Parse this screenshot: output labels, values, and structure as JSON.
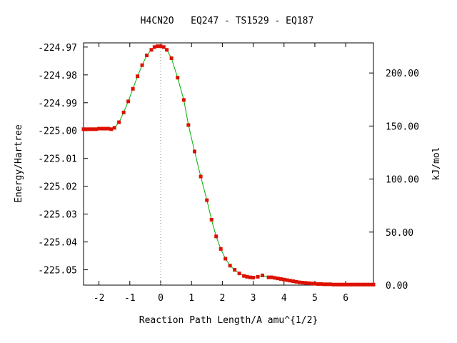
{
  "chart_data": {
    "type": "line",
    "title": "H4CN2O   EQ247 - TS1529 - EQ187",
    "xlabel": "Reaction Path Length/A amu^{1/2}",
    "ylabel": "Energy/Hartree",
    "y2label": "kJ/mol",
    "xlim": [
      -2.5,
      6.9
    ],
    "ylim": [
      -225.0555,
      -224.9685
    ],
    "y2lim": [
      0,
      228.4
    ],
    "x_ticks": [
      -2,
      -1,
      0,
      1,
      2,
      3,
      4,
      5,
      6
    ],
    "x_tick_labels": [
      "-2",
      "-1",
      "0",
      "1",
      "2",
      "3",
      "4",
      "5",
      "6"
    ],
    "y_ticks": [
      -224.97,
      -224.98,
      -224.99,
      -225.0,
      -225.01,
      -225.02,
      -225.03,
      -225.04,
      -225.05
    ],
    "y_tick_labels": [
      "-224.97",
      "-224.98",
      "-224.99",
      "-225.00",
      "-225.01",
      "-225.02",
      "-225.03",
      "-225.04",
      "-225.05"
    ],
    "y2_ticks": [
      0,
      50,
      100,
      150,
      200
    ],
    "y2_tick_labels": [
      "0.00",
      "50.00",
      "100.00",
      "150.00",
      "200.00"
    ],
    "ts_x": 0.0,
    "grid": false,
    "colors": {
      "line": "#00b000",
      "marker": "#dd1100",
      "ts_line": "#888888"
    },
    "series": [
      {
        "x": [
          -2.5,
          -2.4,
          -2.3,
          -2.2,
          -2.1,
          -2.0,
          -1.9,
          -1.8,
          -1.7,
          -1.6,
          -1.5,
          -1.35,
          -1.2,
          -1.05,
          -0.9,
          -0.75,
          -0.6,
          -0.45,
          -0.3,
          -0.2,
          -0.1,
          0.0,
          0.1,
          0.2,
          0.35,
          0.55,
          0.75,
          0.9,
          1.1,
          1.3,
          1.5,
          1.65,
          1.8,
          1.95,
          2.1,
          2.25,
          2.4,
          2.55,
          2.7,
          2.8,
          2.9,
          3.0,
          3.15,
          3.3,
          3.5,
          3.6,
          3.7,
          3.8,
          3.9,
          4.0,
          4.1,
          4.2,
          4.3,
          4.4,
          4.5,
          4.6,
          4.7,
          4.8,
          4.9,
          5.0,
          5.1,
          5.2,
          5.3,
          5.4,
          5.5,
          5.6,
          5.7,
          5.8,
          5.9,
          6.0,
          6.1,
          6.2,
          6.3,
          6.4,
          6.5,
          6.6,
          6.7,
          6.8,
          6.9
        ],
        "y": [
          -224.9995,
          -224.9995,
          -224.9995,
          -224.9995,
          -224.9995,
          -224.9993,
          -224.9993,
          -224.9993,
          -224.9993,
          -224.9995,
          -224.999,
          -224.997,
          -224.9935,
          -224.9895,
          -224.985,
          -224.9805,
          -224.9765,
          -224.973,
          -224.971,
          -224.97,
          -224.9697,
          -224.9697,
          -224.97,
          -224.971,
          -224.974,
          -224.981,
          -224.989,
          -224.998,
          -225.0075,
          -225.0165,
          -225.025,
          -225.032,
          -225.038,
          -225.0425,
          -225.046,
          -225.0485,
          -225.05,
          -225.0513,
          -225.0522,
          -225.0525,
          -225.0527,
          -225.0528,
          -225.0525,
          -225.052,
          -225.0527,
          -225.0527,
          -225.0529,
          -225.0531,
          -225.0533,
          -225.0535,
          -225.0537,
          -225.0539,
          -225.0541,
          -225.0543,
          -225.0545,
          -225.0546,
          -225.0547,
          -225.0548,
          -225.0549,
          -225.055,
          -225.0551,
          -225.0551,
          -225.0552,
          -225.0552,
          -225.0552,
          -225.0553,
          -225.0553,
          -225.0553,
          -225.0553,
          -225.0553,
          -225.0553,
          -225.0553,
          -225.0553,
          -225.0553,
          -225.0553,
          -225.0553,
          -225.0553,
          -225.0553,
          -225.0553
        ]
      }
    ]
  }
}
